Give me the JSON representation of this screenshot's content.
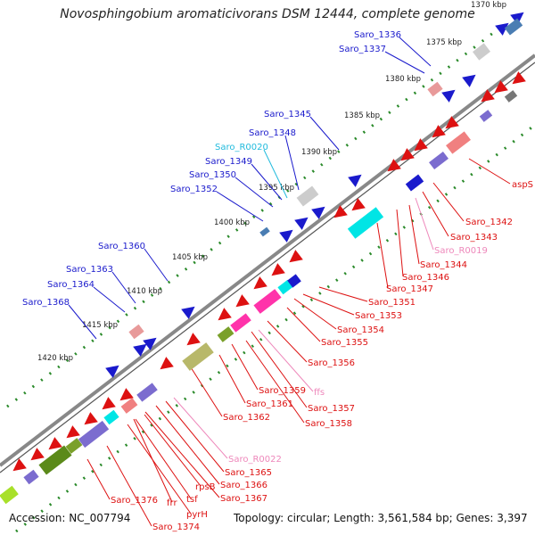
{
  "title": "Novosphingobium aromaticivorans DSM 12444, complete genome",
  "footer": {
    "accession": "Accession: NC_007794",
    "summary": "Topology: circular; Length: 3,561,584 bp; Genes: 3,397"
  },
  "scale_labels": [
    "1370 kbp",
    "1375 kbp",
    "1380 kbp",
    "1385 kbp",
    "1390 kbp",
    "1395 kbp",
    "1400 kbp",
    "1405 kbp",
    "1410 kbp",
    "1415 kbp",
    "1420 kbp"
  ],
  "gene_labels_forward": [
    "Saro_1336",
    "Saro_1337",
    "Saro_1345",
    "Saro_1348",
    "Saro_1349",
    "Saro_1350",
    "Saro_1352",
    "Saro_1360",
    "Saro_1363",
    "Saro_1364",
    "Saro_1368"
  ],
  "gene_labels_rna": [
    "Saro_R0020"
  ],
  "gene_labels_reverse": [
    "aspS",
    "Saro_1342",
    "Saro_1343",
    "Saro_1344",
    "Saro_1346",
    "Saro_1347",
    "Saro_1351",
    "Saro_1353",
    "Saro_1354",
    "Saro_1355",
    "Saro_1356",
    "Saro_1357",
    "Saro_1358",
    "Saro_1359",
    "Saro_1361",
    "Saro_1362",
    "Saro_1365",
    "Saro_1366",
    "Saro_1367",
    "Saro_1374",
    "Saro_1376",
    "frr",
    "pyrH",
    "rpsB",
    "tsf"
  ],
  "gene_labels_reverse_rna": [
    "Saro_R0019",
    "ffs",
    "Saro_R0022"
  ],
  "colors": {
    "forward": "#1a1acc",
    "rna_forward": "#22bbdd",
    "reverse": "#dd1111",
    "reverse_rna": "#ee88bb",
    "tick": "#2a8a2a",
    "backbone": "#888888"
  }
}
